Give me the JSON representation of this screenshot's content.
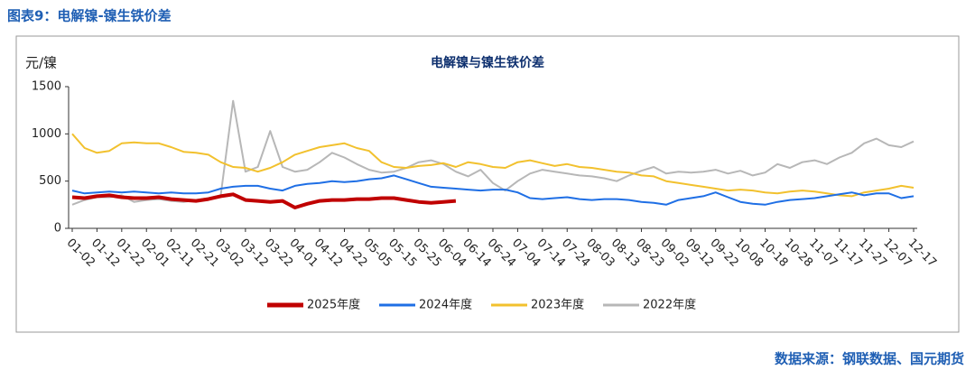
{
  "header": "图表9：电解镍-镍生铁价差",
  "source": "数据来源：钢联数据、国元期货",
  "chart_data": {
    "type": "line",
    "title": "电解镍与镍生铁价差",
    "y_label": "元/镍",
    "categories": [
      "01-02",
      null,
      "01-12",
      null,
      "01-22",
      null,
      "02-01",
      null,
      "02-11",
      null,
      "02-21",
      null,
      "03-02",
      null,
      "03-12",
      null,
      "03-22",
      null,
      "04-01",
      null,
      "04-12",
      null,
      "04-22",
      null,
      "05-05",
      null,
      "05-15",
      null,
      "05-25",
      null,
      "06-04",
      null,
      "06-14",
      null,
      "06-24",
      null,
      "07-04",
      null,
      "07-14",
      null,
      "07-24",
      null,
      "08-03",
      null,
      "08-13",
      null,
      "08-23",
      null,
      "09-02",
      null,
      "09-12",
      null,
      "09-22",
      null,
      "10-08",
      null,
      "10-18",
      null,
      "10-28",
      null,
      "11-07",
      null,
      "11-17",
      null,
      "11-27",
      null,
      "12-07",
      null,
      "12-17"
    ],
    "series": [
      {
        "name": "2025年度",
        "color": "#c00000",
        "width": 4,
        "values": [
          330,
          320,
          340,
          350,
          330,
          320,
          320,
          330,
          310,
          300,
          290,
          310,
          340,
          360,
          300,
          290,
          280,
          290,
          220,
          260,
          290,
          300,
          300,
          310,
          310,
          320,
          320,
          300,
          280,
          270,
          280,
          290,
          null,
          null,
          null,
          null,
          null,
          null,
          null,
          null,
          null,
          null,
          null,
          null,
          null,
          null,
          null,
          null,
          null,
          null,
          null,
          null,
          null,
          null,
          null,
          null,
          null,
          null,
          null,
          null,
          null,
          null,
          null,
          null,
          null,
          null,
          null,
          null,
          null
        ]
      },
      {
        "name": "2024年度",
        "color": "#1f6fe5",
        "width": 2,
        "values": [
          400,
          370,
          380,
          390,
          380,
          390,
          380,
          370,
          380,
          370,
          370,
          380,
          420,
          440,
          450,
          450,
          420,
          400,
          450,
          470,
          480,
          500,
          490,
          500,
          520,
          530,
          560,
          520,
          480,
          440,
          430,
          420,
          410,
          400,
          410,
          410,
          380,
          320,
          310,
          320,
          330,
          310,
          300,
          310,
          310,
          300,
          280,
          270,
          250,
          300,
          320,
          340,
          380,
          330,
          280,
          260,
          250,
          280,
          300,
          310,
          320,
          340,
          360,
          380,
          350,
          370,
          370,
          320,
          340
        ]
      },
      {
        "name": "2023年度",
        "color": "#f2c12e",
        "width": 2,
        "values": [
          1000,
          850,
          800,
          820,
          900,
          910,
          900,
          900,
          860,
          810,
          800,
          780,
          700,
          650,
          640,
          600,
          640,
          700,
          780,
          820,
          860,
          880,
          900,
          850,
          820,
          700,
          650,
          640,
          660,
          670,
          690,
          650,
          700,
          680,
          650,
          640,
          700,
          720,
          690,
          660,
          680,
          650,
          640,
          620,
          600,
          590,
          560,
          550,
          500,
          480,
          460,
          440,
          420,
          400,
          410,
          400,
          380,
          370,
          390,
          400,
          390,
          370,
          350,
          340,
          380,
          400,
          420,
          450,
          430
        ]
      },
      {
        "name": "2022年度",
        "color": "#b7b7b7",
        "width": 2,
        "values": [
          250,
          300,
          330,
          330,
          350,
          280,
          300,
          310,
          290,
          280,
          300,
          320,
          350,
          1350,
          600,
          650,
          1030,
          650,
          600,
          620,
          700,
          800,
          750,
          680,
          620,
          590,
          600,
          640,
          700,
          720,
          680,
          600,
          550,
          620,
          480,
          400,
          500,
          580,
          620,
          600,
          580,
          560,
          550,
          530,
          500,
          560,
          610,
          650,
          580,
          600,
          590,
          600,
          620,
          580,
          610,
          560,
          590,
          680,
          640,
          700,
          720,
          680,
          750,
          800,
          900,
          950,
          880,
          860,
          920
        ]
      }
    ],
    "ylim": [
      0,
      1500
    ],
    "yticks": [
      0,
      500,
      1000,
      1500
    ],
    "legend": "bottom"
  }
}
